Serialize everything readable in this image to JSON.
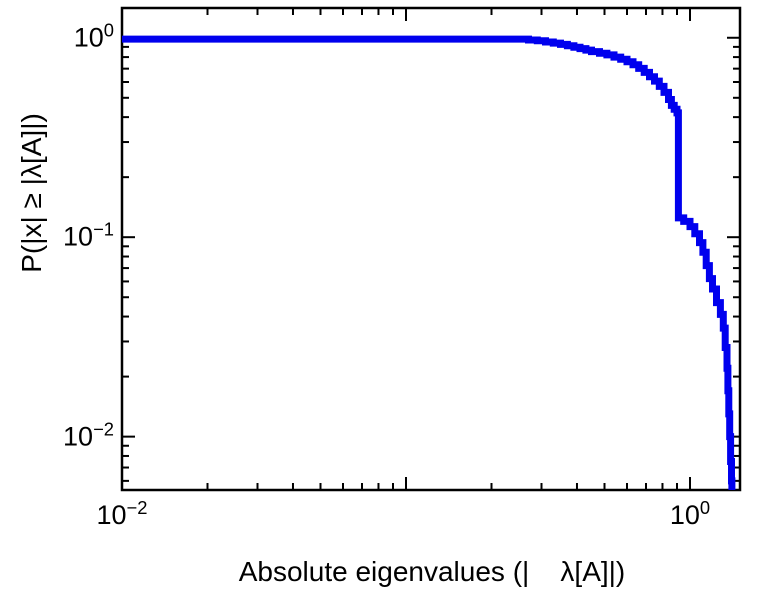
{
  "figure": {
    "background": "#ffffff"
  },
  "chart_data": {
    "type": "line",
    "subtype": "empirical-ccdf-step",
    "title": "",
    "xlabel": "Absolute eigenvalues (|    λ[A]|)",
    "ylabel": "P(|x| ≥ |λ[A]|)",
    "x_scale": "log",
    "y_scale": "log",
    "xlim": [
      0.01,
      1.5
    ],
    "ylim": [
      0.0054,
      1.41
    ],
    "grid": false,
    "legend": null,
    "axis_color": "#000000",
    "line_color": "#0000ee",
    "line_width": 7,
    "x_tick_labels": [
      {
        "value": 0.01,
        "text": "10^−2"
      },
      {
        "value": 1,
        "text": "10^0"
      }
    ],
    "y_tick_labels": [
      {
        "value": 1,
        "text": "10^0"
      },
      {
        "value": 0.1,
        "text": "10^−1"
      },
      {
        "value": 0.01,
        "text": "10^−2"
      }
    ],
    "series": [
      {
        "name": "P(|x| ≥ |λ[A]|)",
        "step": "post",
        "points": [
          [
            0.01,
            0.985
          ],
          [
            0.25,
            0.985
          ],
          [
            0.27,
            0.975
          ],
          [
            0.29,
            0.965
          ],
          [
            0.31,
            0.952
          ],
          [
            0.33,
            0.94
          ],
          [
            0.35,
            0.926
          ],
          [
            0.37,
            0.912
          ],
          [
            0.39,
            0.897
          ],
          [
            0.41,
            0.882
          ],
          [
            0.43,
            0.867
          ],
          [
            0.45,
            0.852
          ],
          [
            0.48,
            0.836
          ],
          [
            0.51,
            0.82
          ],
          [
            0.54,
            0.8
          ],
          [
            0.57,
            0.78
          ],
          [
            0.6,
            0.758
          ],
          [
            0.63,
            0.732
          ],
          [
            0.66,
            0.702
          ],
          [
            0.69,
            0.67
          ],
          [
            0.72,
            0.638
          ],
          [
            0.75,
            0.606
          ],
          [
            0.78,
            0.57
          ],
          [
            0.81,
            0.532
          ],
          [
            0.84,
            0.49
          ],
          [
            0.86,
            0.458
          ],
          [
            0.88,
            0.438
          ],
          [
            0.9,
            0.42
          ],
          [
            0.91,
            0.125
          ],
          [
            0.95,
            0.12
          ],
          [
            1.0,
            0.113
          ],
          [
            1.04,
            0.104
          ],
          [
            1.08,
            0.094
          ],
          [
            1.11,
            0.084
          ],
          [
            1.14,
            0.072
          ],
          [
            1.17,
            0.062
          ],
          [
            1.2,
            0.055
          ],
          [
            1.24,
            0.047
          ],
          [
            1.28,
            0.041
          ],
          [
            1.31,
            0.035
          ],
          [
            1.33,
            0.028
          ],
          [
            1.35,
            0.022
          ],
          [
            1.36,
            0.017
          ],
          [
            1.37,
            0.013
          ],
          [
            1.38,
            0.01
          ],
          [
            1.39,
            0.0075
          ],
          [
            1.4,
            0.006
          ],
          [
            1.405,
            0.0045
          ]
        ]
      }
    ]
  }
}
